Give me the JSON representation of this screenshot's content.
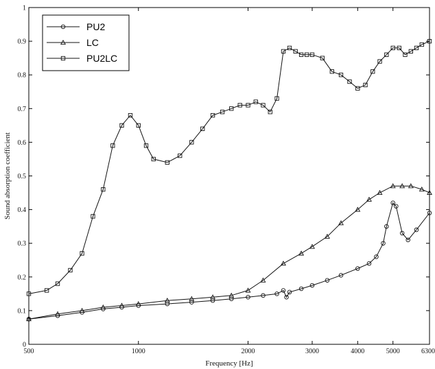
{
  "chart_data": {
    "type": "line",
    "xlabel": "Frequency [Hz]",
    "ylabel": "Sound absorption coefficient",
    "x_scale": "log",
    "xlim": [
      500,
      6300
    ],
    "ylim": [
      0,
      1
    ],
    "x_ticks": [
      500,
      1000,
      2000,
      3000,
      4000,
      5000,
      6300
    ],
    "x_tick_labels": [
      "500",
      "1000",
      "2000",
      "3000",
      "4000",
      "5000",
      "6300"
    ],
    "y_ticks": [
      0,
      0.1,
      0.2,
      0.3,
      0.4,
      0.5,
      0.6,
      0.7,
      0.8,
      0.9,
      1
    ],
    "y_tick_labels": [
      "0",
      "0.1",
      "0.2",
      "0.3",
      "0.4",
      "0.5",
      "0.6",
      "0.7",
      "0.8",
      "0.9",
      "1"
    ],
    "grid": false,
    "legend_position": "top-left",
    "line_color": "#111111",
    "series": [
      {
        "name": "PU2",
        "marker": "circle",
        "x": [
          500,
          600,
          700,
          800,
          900,
          1000,
          1200,
          1400,
          1600,
          1800,
          2000,
          2200,
          2400,
          2500,
          2550,
          2600,
          2800,
          3000,
          3300,
          3600,
          4000,
          4300,
          4500,
          4700,
          4800,
          5000,
          5100,
          5300,
          5500,
          5800,
          6300
        ],
        "y": [
          0.075,
          0.085,
          0.095,
          0.105,
          0.11,
          0.115,
          0.12,
          0.125,
          0.13,
          0.135,
          0.14,
          0.145,
          0.15,
          0.16,
          0.14,
          0.155,
          0.165,
          0.175,
          0.19,
          0.205,
          0.225,
          0.24,
          0.26,
          0.3,
          0.35,
          0.42,
          0.41,
          0.33,
          0.31,
          0.34,
          0.39
        ]
      },
      {
        "name": "LC",
        "marker": "triangle",
        "x": [
          500,
          600,
          700,
          800,
          900,
          1000,
          1200,
          1400,
          1600,
          1800,
          2000,
          2200,
          2500,
          2800,
          3000,
          3300,
          3600,
          4000,
          4300,
          4600,
          5000,
          5300,
          5600,
          6000,
          6300
        ],
        "y": [
          0.075,
          0.09,
          0.1,
          0.11,
          0.115,
          0.12,
          0.13,
          0.135,
          0.14,
          0.145,
          0.16,
          0.19,
          0.24,
          0.27,
          0.29,
          0.32,
          0.36,
          0.4,
          0.43,
          0.45,
          0.47,
          0.47,
          0.47,
          0.46,
          0.45
        ]
      },
      {
        "name": "PU2LC",
        "marker": "square",
        "x": [
          500,
          560,
          600,
          650,
          700,
          750,
          800,
          850,
          900,
          950,
          1000,
          1050,
          1100,
          1200,
          1300,
          1400,
          1500,
          1600,
          1700,
          1800,
          1900,
          2000,
          2100,
          2200,
          2300,
          2400,
          2500,
          2600,
          2700,
          2800,
          2900,
          3000,
          3200,
          3400,
          3600,
          3800,
          4000,
          4200,
          4400,
          4600,
          4800,
          5000,
          5200,
          5400,
          5600,
          5800,
          6000,
          6300
        ],
        "y": [
          0.15,
          0.16,
          0.18,
          0.22,
          0.27,
          0.38,
          0.46,
          0.59,
          0.65,
          0.68,
          0.65,
          0.59,
          0.55,
          0.54,
          0.56,
          0.6,
          0.64,
          0.68,
          0.69,
          0.7,
          0.71,
          0.71,
          0.72,
          0.71,
          0.69,
          0.73,
          0.87,
          0.88,
          0.87,
          0.86,
          0.86,
          0.86,
          0.85,
          0.81,
          0.8,
          0.78,
          0.76,
          0.77,
          0.81,
          0.84,
          0.86,
          0.88,
          0.88,
          0.86,
          0.87,
          0.88,
          0.89,
          0.9
        ]
      }
    ]
  }
}
